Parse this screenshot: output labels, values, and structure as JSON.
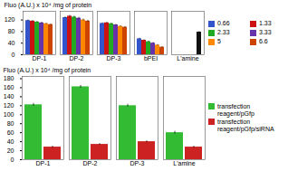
{
  "chart_data": [
    {
      "type": "bar",
      "categories": [
        "DP-1",
        "DP-2",
        "DP-3",
        "bPEI",
        "L'amine"
      ],
      "series": [
        {
          "name": "0.66",
          "color": "#3355cc",
          "values": [
            118,
            128,
            108,
            55,
            null
          ],
          "errors": [
            2,
            3,
            2,
            2,
            null
          ]
        },
        {
          "name": "1.33",
          "color": "#cc1111",
          "values": [
            116,
            133,
            110,
            50,
            null
          ],
          "errors": [
            2,
            3,
            2,
            2,
            null
          ]
        },
        {
          "name": "2.33",
          "color": "#22aa22",
          "values": [
            113,
            130,
            107,
            45,
            null
          ],
          "errors": [
            2,
            3,
            2,
            2,
            null
          ]
        },
        {
          "name": "3.33",
          "color": "#6633aa",
          "values": [
            110,
            126,
            103,
            40,
            null
          ],
          "errors": [
            2,
            3,
            2,
            2,
            null
          ]
        },
        {
          "name": "5",
          "color": "#ff8800",
          "values": [
            107,
            120,
            98,
            33,
            null
          ],
          "errors": [
            2,
            3,
            2,
            2,
            null
          ]
        },
        {
          "name": "6.6",
          "color": "#cc4400",
          "colors": [
            "#cc4400",
            "#cc4400",
            "#cc4400",
            "#cc4400",
            "#111111"
          ],
          "values": [
            104,
            116,
            95,
            26,
            78
          ],
          "errors": [
            2,
            3,
            2,
            2,
            2
          ]
        }
      ],
      "ylabel": "Fluo (A.U.) x 10⁴ /mg of protein",
      "ylim": [
        0,
        150
      ],
      "yticks": [
        0,
        40,
        80,
        120
      ],
      "legend": "right"
    },
    {
      "type": "bar",
      "categories": [
        "DP-1",
        "DP-2",
        "DP-3",
        "L'amine"
      ],
      "series": [
        {
          "name": "transfection\nreagent/pGfp",
          "color": "#33bb33",
          "values": [
            122,
            162,
            120,
            60
          ],
          "errors": [
            3,
            3,
            3,
            3
          ]
        },
        {
          "name": "transfection\nreagent/pGfp/siRNA",
          "color": "#cc2222",
          "values": [
            28,
            34,
            40,
            28
          ],
          "errors": [
            2,
            2,
            2,
            2
          ]
        }
      ],
      "ylabel": "Fluo (A.U.) x 10⁴ /mg of protein",
      "ylim": [
        0,
        185
      ],
      "yticks": [
        0,
        20,
        40,
        60,
        80,
        100,
        120,
        140,
        160,
        180
      ],
      "legend": "right"
    }
  ]
}
